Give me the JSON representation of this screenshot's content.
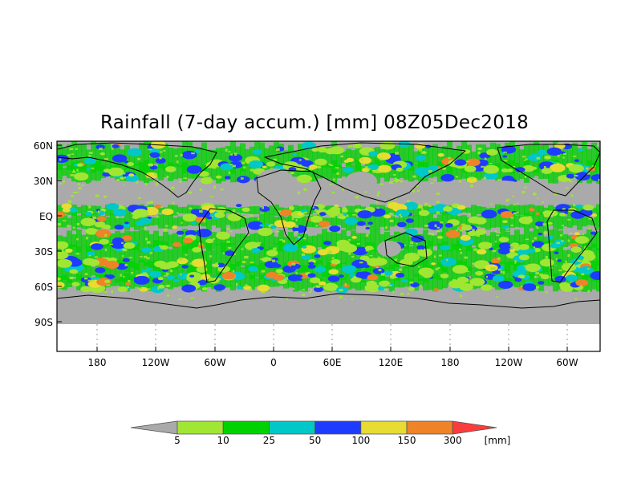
{
  "title": "Rainfall (7-day accum.) [mm] 08Z05Dec2018",
  "map": {
    "lat_labels": [
      "60N",
      "30N",
      "EQ",
      "30S",
      "60S",
      "90S"
    ],
    "lon_labels": [
      "180",
      "120W",
      "60W",
      "0",
      "60E",
      "120E",
      "180",
      "120W",
      "60W"
    ],
    "land_color": "#aaaaaa",
    "coastline_color": "#000000"
  },
  "colorbar": {
    "ticks": [
      "5",
      "10",
      "25",
      "50",
      "100",
      "150",
      "300"
    ],
    "unit": "[mm]",
    "colors": [
      "#aaaaaa",
      "#a0e632",
      "#00d200",
      "#00c8c8",
      "#1e3cff",
      "#e6dc32",
      "#f08228",
      "#fa3c3c"
    ]
  }
}
